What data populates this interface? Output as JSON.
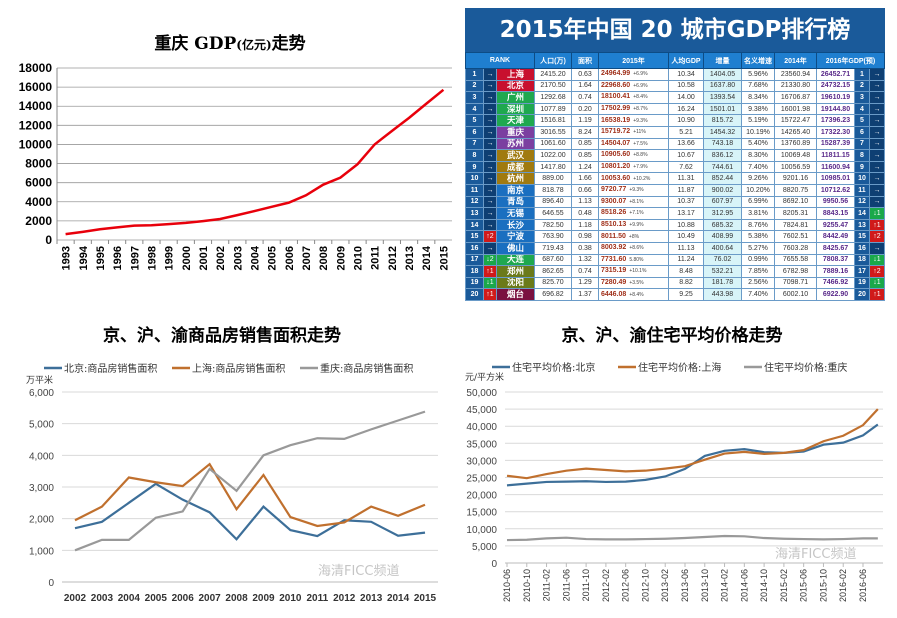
{
  "chart_data": [
    {
      "type": "line",
      "title": "重庆GDP(亿元)走势",
      "title_main": "重庆 GDP",
      "title_unit": "(亿元)",
      "title_tail": "走势",
      "categories": [
        "1993",
        "1994",
        "1995",
        "1996",
        "1997",
        "1998",
        "1999",
        "2000",
        "2001",
        "2002",
        "2003",
        "2004",
        "2005",
        "2006",
        "2007",
        "2008",
        "2009",
        "2010",
        "2011",
        "2012",
        "2013",
        "2014",
        "2015"
      ],
      "series": [
        {
          "values": [
            620,
            850,
            1120,
            1320,
            1510,
            1550,
            1660,
            1790,
            1980,
            2200,
            2600,
            3030,
            3470,
            3910,
            4680,
            5790,
            6530,
            7930,
            10010,
            11410,
            12780,
            14260,
            15720
          ],
          "color": "#e8000b"
        }
      ],
      "ylim": [
        0,
        18000
      ],
      "yticks": [
        "0",
        "2000",
        "4000",
        "6000",
        "8000",
        "10000",
        "12000",
        "14000",
        "16000",
        "18000"
      ],
      "grid": true
    },
    {
      "type": "line",
      "title": "京、沪、渝商品房销售面积走势",
      "ylabel": "万平米",
      "categories": [
        "2002",
        "2003",
        "2004",
        "2005",
        "2006",
        "2007",
        "2008",
        "2009",
        "2010",
        "2011",
        "2012",
        "2013",
        "2014",
        "2015"
      ],
      "series": [
        {
          "name": "北京:商品房销售面积",
          "color": "#3d6f99",
          "values": [
            1700,
            1900,
            2500,
            3100,
            2600,
            2200,
            1350,
            2380,
            1640,
            1450,
            1950,
            1900,
            1460,
            1560
          ]
        },
        {
          "name": "上海:商品房销售面积",
          "color": "#c0702e",
          "values": [
            1950,
            2380,
            3300,
            3150,
            3030,
            3720,
            2300,
            3380,
            2050,
            1770,
            1880,
            2380,
            2090,
            2440
          ]
        },
        {
          "name": "重庆:商品房销售面积",
          "color": "#999999",
          "values": [
            1000,
            1330,
            1330,
            2030,
            2230,
            3570,
            2880,
            4000,
            4320,
            4540,
            4520,
            4820,
            5100,
            5380
          ]
        }
      ],
      "ylim": [
        0,
        6000
      ],
      "yticks": [
        "0",
        "1,000",
        "2,000",
        "3,000",
        "4,000",
        "5,000",
        "6,000"
      ],
      "legend": "top",
      "grid": true
    },
    {
      "type": "line",
      "title": "京、沪、渝住宅平均价格走势",
      "ylabel": "元/平方米",
      "x": [
        "2010-06",
        "2010-10",
        "2011-02",
        "2011-06",
        "2011-10",
        "2012-02",
        "2012-06",
        "2012-10",
        "2013-02",
        "2013-06",
        "2013-10",
        "2014-02",
        "2014-06",
        "2014-10",
        "2015-02",
        "2015-06",
        "2015-10",
        "2016-02",
        "2016-06",
        "2016-09"
      ],
      "xticks": [
        "2010-06",
        "2010-10",
        "2011-02",
        "2011-06",
        "2011-10",
        "2012-02",
        "2012-06",
        "2012-10",
        "2013-02",
        "2013-06",
        "2013-10",
        "2014-02",
        "2014-06",
        "2014-10",
        "2015-02",
        "2015-06",
        "2015-10",
        "2016-02",
        "2016-06"
      ],
      "series": [
        {
          "name": "住宅平均价格:北京",
          "color": "#3d6f99",
          "values": [
            22700,
            23200,
            23700,
            23800,
            23900,
            23700,
            23800,
            24300,
            25300,
            27500,
            31300,
            32800,
            33300,
            32400,
            32200,
            32600,
            34600,
            35200,
            37300,
            40500
          ]
        },
        {
          "name": "住宅平均价格:上海",
          "color": "#c0702e",
          "values": [
            25500,
            24800,
            26000,
            27000,
            27600,
            27200,
            26800,
            27000,
            27600,
            28300,
            30200,
            32000,
            32500,
            31900,
            32200,
            33000,
            35600,
            37200,
            40300,
            45000
          ]
        },
        {
          "name": "住宅平均价格:重庆",
          "color": "#999999",
          "values": [
            6700,
            6800,
            7200,
            7400,
            7000,
            6900,
            6900,
            7000,
            7100,
            7300,
            7600,
            7900,
            7800,
            7300,
            7100,
            7000,
            6900,
            7000,
            7200,
            7200
          ]
        }
      ],
      "ylim": [
        0,
        50000
      ],
      "yticks": [
        "0",
        "5,000",
        "10,000",
        "15,000",
        "20,000",
        "25,000",
        "30,000",
        "35,000",
        "40,000",
        "45,000",
        "50,000"
      ],
      "legend": "top",
      "grid": true
    }
  ],
  "table": {
    "title": "2015年中国 20 城市GDP排行榜",
    "headers": [
      "RANK",
      "人口(万)",
      "面积",
      "2015年",
      "人均GDP",
      "增量",
      "名义增速",
      "2014年",
      "2016年GDP(预)"
    ],
    "rows": [
      [
        "1",
        "→",
        "上海",
        "#c8102e",
        "2415.20",
        "0.63",
        "24964.99",
        "+6.9%",
        "10.34",
        "1404.05",
        "5.96%",
        "23560.94",
        "26452.71",
        "1",
        "→"
      ],
      [
        "2",
        "→",
        "北京",
        "#c8102e",
        "2170.50",
        "1.64",
        "22968.60",
        "+6.9%",
        "10.58",
        "1637.80",
        "7.68%",
        "21330.80",
        "24732.15",
        "2",
        "→"
      ],
      [
        "3",
        "→",
        "广州",
        "#1fa84f",
        "1292.68",
        "0.74",
        "18100.41",
        "+8.4%",
        "14.00",
        "1393.54",
        "8.34%",
        "16706.87",
        "19610.19",
        "3",
        "→"
      ],
      [
        "4",
        "→",
        "深圳",
        "#1fa84f",
        "1077.89",
        "0.20",
        "17502.99",
        "+8.7%",
        "16.24",
        "1501.01",
        "9.38%",
        "16001.98",
        "19144.80",
        "4",
        "→"
      ],
      [
        "5",
        "→",
        "天津",
        "#1fa84f",
        "1516.81",
        "1.19",
        "16538.19",
        "+9.3%",
        "10.90",
        "815.72",
        "5.19%",
        "15722.47",
        "17396.23",
        "5",
        "→"
      ],
      [
        "6",
        "→",
        "重庆",
        "#7b3fa0",
        "3016.55",
        "8.24",
        "15719.72",
        "+11%",
        "5.21",
        "1454.32",
        "10.19%",
        "14265.40",
        "17322.30",
        "6",
        "→"
      ],
      [
        "7",
        "→",
        "苏州",
        "#7b3fa0",
        "1061.60",
        "0.85",
        "14504.07",
        "+7.5%",
        "13.66",
        "743.18",
        "5.40%",
        "13760.89",
        "15287.39",
        "7",
        "→"
      ],
      [
        "8",
        "→",
        "武汉",
        "#a07a10",
        "1022.00",
        "0.85",
        "10905.60",
        "+8.8%",
        "10.67",
        "836.12",
        "8.30%",
        "10069.48",
        "11811.15",
        "8",
        "→"
      ],
      [
        "9",
        "→",
        "成都",
        "#a07a10",
        "1417.80",
        "1.24",
        "10801.20",
        "+7.9%",
        "7.62",
        "744.61",
        "7.40%",
        "10056.59",
        "11600.94",
        "9",
        "→"
      ],
      [
        "10",
        "→",
        "杭州",
        "#a07a10",
        "889.00",
        "1.66",
        "10053.60",
        "+10.2%",
        "11.31",
        "852.44",
        "9.26%",
        "9201.16",
        "10985.01",
        "10",
        "→"
      ],
      [
        "11",
        "→",
        "南京",
        "#1a6fc0",
        "818.78",
        "0.66",
        "9720.77",
        "+9.3%",
        "11.87",
        "900.02",
        "10.20%",
        "8820.75",
        "10712.62",
        "11",
        "→"
      ],
      [
        "12",
        "→",
        "青岛",
        "#1a6fc0",
        "896.40",
        "1.13",
        "9300.07",
        "+8.1%",
        "10.37",
        "607.97",
        "6.99%",
        "8692.10",
        "9950.56",
        "12",
        "→"
      ],
      [
        "13",
        "→",
        "无锡",
        "#1a6fc0",
        "646.55",
        "0.48",
        "8518.26",
        "+7.1%",
        "13.17",
        "312.95",
        "3.81%",
        "8205.31",
        "8843.15",
        "14",
        "↓1"
      ],
      [
        "14",
        "→",
        "长沙",
        "#1a6fc0",
        "782.50",
        "1.18",
        "8510.13",
        "+9.9%",
        "10.88",
        "685.32",
        "8.76%",
        "7824.81",
        "9255.47",
        "13",
        "↑1"
      ],
      [
        "15",
        "↑2",
        "宁波",
        "#1a6fc0",
        "763.90",
        "0.98",
        "8011.50",
        "+8%",
        "10.49",
        "408.99",
        "5.38%",
        "7602.51",
        "8442.49",
        "15",
        "↑2"
      ],
      [
        "16",
        "→",
        "佛山",
        "#1a6fc0",
        "719.43",
        "0.38",
        "8003.92",
        "+8.6%",
        "11.13",
        "400.64",
        "5.27%",
        "7603.28",
        "8425.67",
        "16",
        "→"
      ],
      [
        "17",
        "↓2",
        "大连",
        "#1fa84f",
        "687.60",
        "1.32",
        "7731.60",
        "5.80%",
        "11.24",
        "76.02",
        "0.99%",
        "7655.58",
        "7808.37",
        "18",
        "↓1"
      ],
      [
        "18",
        "↑1",
        "郑州",
        "#6b7a1a",
        "862.65",
        "0.74",
        "7315.19",
        "+10.1%",
        "8.48",
        "532.21",
        "7.85%",
        "6782.98",
        "7889.16",
        "17",
        "↑2"
      ],
      [
        "19",
        "↓1",
        "沈阳",
        "#6b7a1a",
        "825.70",
        "1.29",
        "7280.49",
        "+3.5%",
        "8.82",
        "181.78",
        "2.56%",
        "7098.71",
        "7466.92",
        "19",
        "↓1"
      ],
      [
        "20",
        "↑1",
        "烟台",
        "#7a1040",
        "696.82",
        "1.37",
        "6446.08",
        "+8.4%",
        "9.25",
        "443.98",
        "7.40%",
        "6002.10",
        "6922.90",
        "20",
        "↑1"
      ]
    ]
  },
  "watermark": "海清FICC频道"
}
